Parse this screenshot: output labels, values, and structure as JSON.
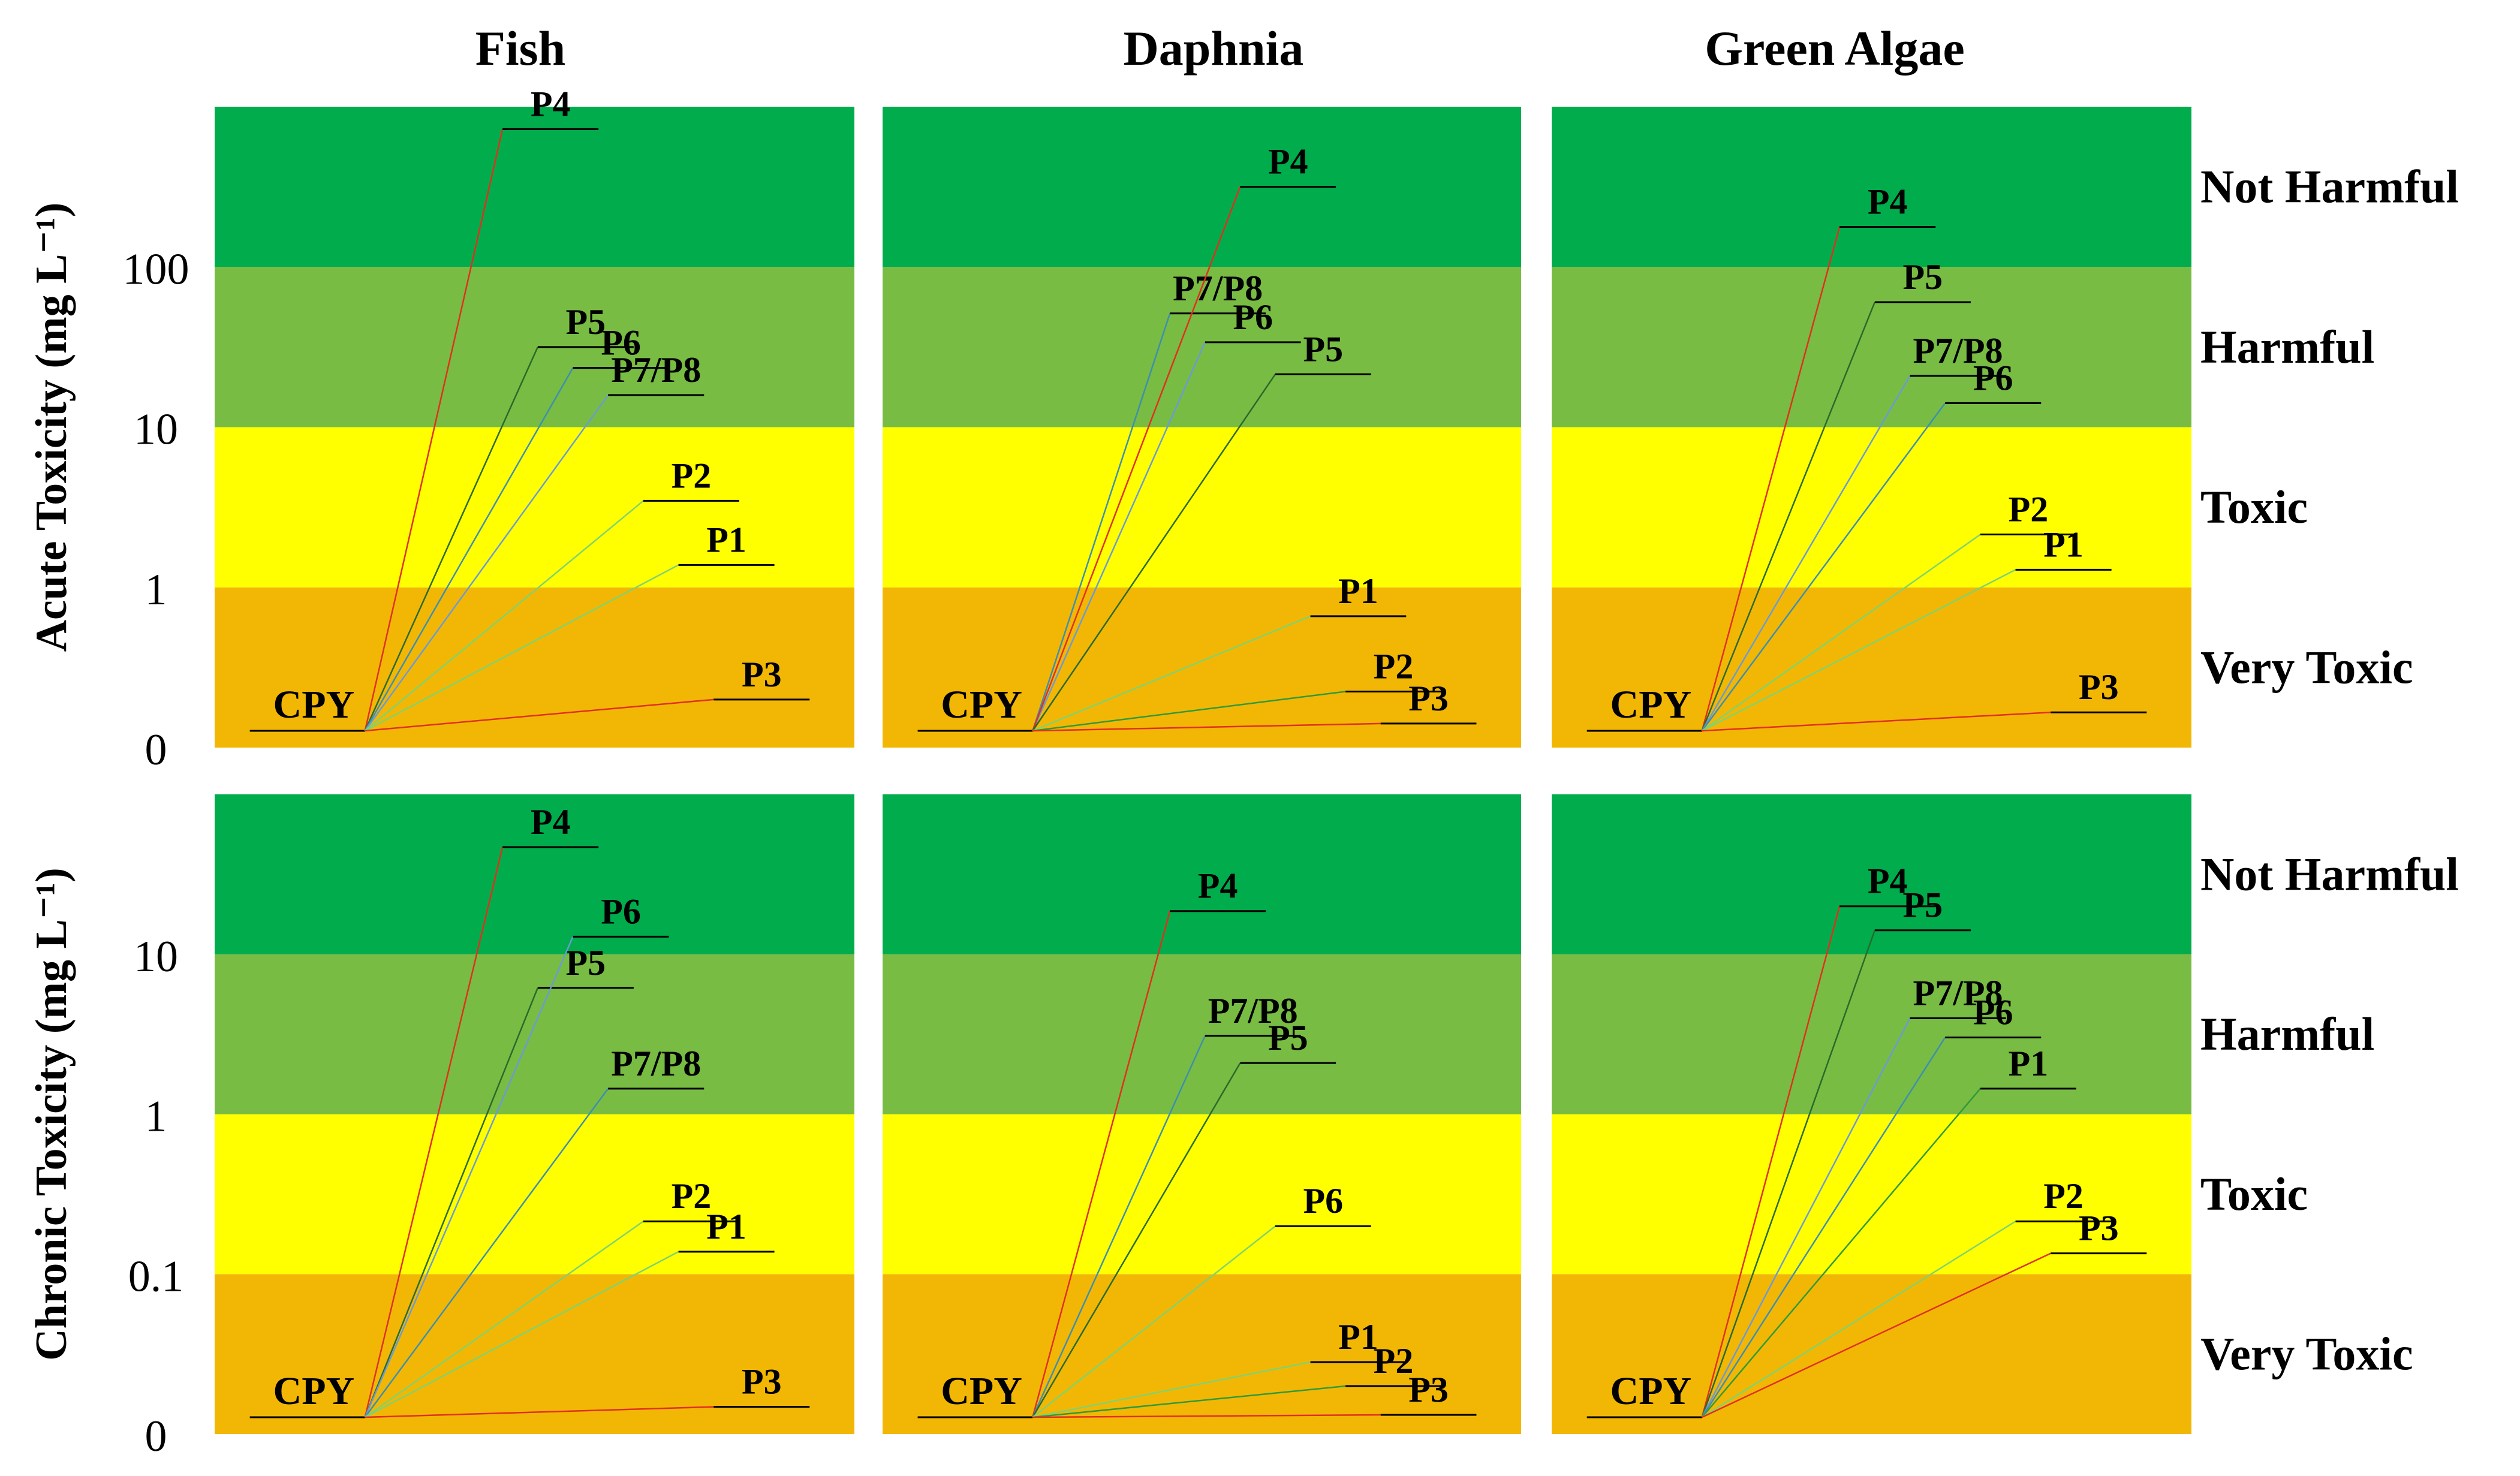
{
  "chart_data": {
    "type": "tiered-toxicity-diagram",
    "title": "",
    "columns": [
      "Fish",
      "Daphnia",
      "Green Algae"
    ],
    "rows": [
      {
        "ylabel": "Acute Toxicity (mg L⁻¹)",
        "yticks": [
          "0",
          "1",
          "10",
          "100"
        ],
        "categories": [
          "Very Toxic",
          "Toxic",
          "Harmful",
          "Not Harmful"
        ]
      },
      {
        "ylabel": "Chronic Toxicity (mg L⁻¹)",
        "yticks": [
          "0",
          "0.1",
          "1",
          "10"
        ],
        "categories": [
          "Very Toxic",
          "Toxic",
          "Harmful",
          "Not Harmful"
        ]
      }
    ],
    "band_colors": [
      "#f2b705",
      "#ffff00",
      "#78bc43",
      "#00ac4b"
    ],
    "source_label": "CPY",
    "panels": [
      {
        "row": 0,
        "col": 0,
        "points": [
          {
            "label": "P4",
            "value": 3.86,
            "color": "#e0301e"
          },
          {
            "label": "P5",
            "value": 2.5,
            "color": "#2a6a2a"
          },
          {
            "label": "P6",
            "value": 2.37,
            "color": "#3d8fb0"
          },
          {
            "label": "P7/P8",
            "value": 2.2,
            "color": "#6a9bd4"
          },
          {
            "label": "P2",
            "value": 1.54,
            "color": "#7fd36f"
          },
          {
            "label": "P1",
            "value": 1.14,
            "color": "#7fd36f"
          },
          {
            "label": "P3",
            "value": 0.3,
            "color": "#e0301e"
          }
        ]
      },
      {
        "row": 0,
        "col": 1,
        "points": [
          {
            "label": "P7/P8",
            "value": 2.71,
            "color": "#3d8fb0"
          },
          {
            "label": "P6",
            "value": 2.53,
            "color": "#6a9bd4"
          },
          {
            "label": "P4",
            "value": 3.5,
            "color": "#e0301e"
          },
          {
            "label": "P5",
            "value": 2.33,
            "color": "#2a6a2a"
          },
          {
            "label": "P1",
            "value": 0.82,
            "color": "#7fd36f"
          },
          {
            "label": "P2",
            "value": 0.35,
            "color": "#2f9a3a"
          },
          {
            "label": "P3",
            "value": 0.15,
            "color": "#e0301e"
          }
        ]
      },
      {
        "row": 0,
        "col": 2,
        "points": [
          {
            "label": "P4",
            "value": 3.25,
            "color": "#e0301e"
          },
          {
            "label": "P5",
            "value": 2.78,
            "color": "#2a6a2a"
          },
          {
            "label": "P7/P8",
            "value": 2.32,
            "color": "#6a9bd4"
          },
          {
            "label": "P6",
            "value": 2.15,
            "color": "#3d8fb0"
          },
          {
            "label": "P2",
            "value": 1.33,
            "color": "#7fd36f"
          },
          {
            "label": "P1",
            "value": 1.11,
            "color": "#7fd36f"
          },
          {
            "label": "P3",
            "value": 0.22,
            "color": "#e0301e"
          }
        ]
      },
      {
        "row": 1,
        "col": 0,
        "points": [
          {
            "label": "P4",
            "value": 3.67,
            "color": "#e0301e"
          },
          {
            "label": "P5",
            "value": 2.79,
            "color": "#2a6a2a"
          },
          {
            "label": "P6",
            "value": 3.11,
            "color": "#6a9bd4"
          },
          {
            "label": "P7/P8",
            "value": 2.16,
            "color": "#3d8fb0"
          },
          {
            "label": "P2",
            "value": 1.33,
            "color": "#7fd36f"
          },
          {
            "label": "P1",
            "value": 1.14,
            "color": "#7fd36f"
          },
          {
            "label": "P3",
            "value": 0.17,
            "color": "#e0301e"
          }
        ]
      },
      {
        "row": 1,
        "col": 1,
        "points": [
          {
            "label": "P4",
            "value": 3.27,
            "color": "#e0301e"
          },
          {
            "label": "P7/P8",
            "value": 2.49,
            "color": "#3d8fb0"
          },
          {
            "label": "P5",
            "value": 2.32,
            "color": "#2a6a2a"
          },
          {
            "label": "P6",
            "value": 1.3,
            "color": "#7fd36f"
          },
          {
            "label": "P1",
            "value": 0.45,
            "color": "#7fd36f"
          },
          {
            "label": "P2",
            "value": 0.3,
            "color": "#2f9a3a"
          },
          {
            "label": "P3",
            "value": 0.12,
            "color": "#e0301e"
          }
        ]
      },
      {
        "row": 1,
        "col": 2,
        "points": [
          {
            "label": "P4",
            "value": 3.3,
            "color": "#e0301e"
          },
          {
            "label": "P5",
            "value": 3.15,
            "color": "#2a6a2a"
          },
          {
            "label": "P7/P8",
            "value": 2.6,
            "color": "#6a9bd4"
          },
          {
            "label": "P6",
            "value": 2.48,
            "color": "#3d8fb0"
          },
          {
            "label": "P1",
            "value": 2.16,
            "color": "#2f9a3a"
          },
          {
            "label": "P2",
            "value": 1.33,
            "color": "#7fd36f"
          },
          {
            "label": "P3",
            "value": 1.13,
            "color": "#e0301e"
          }
        ]
      }
    ]
  }
}
